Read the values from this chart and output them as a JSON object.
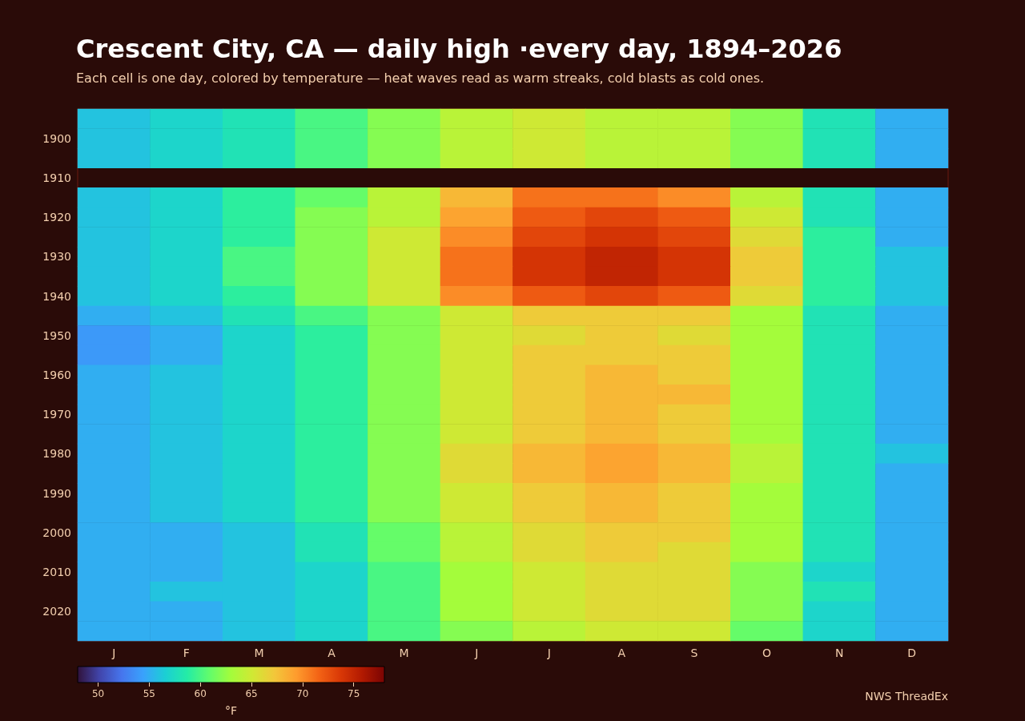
{
  "chart_data": {
    "type": "heatmap",
    "title": "Crescent City, CA — daily high ·every day, 1894–2026",
    "subtitle": "Each cell is one day, colored by temperature — heat waves read as warm streaks, cold blasts as cold ones.",
    "categories": [
      "J",
      "F",
      "M",
      "A",
      "M",
      "J",
      "J",
      "A",
      "S",
      "O",
      "N",
      "D"
    ],
    "y_categories": [
      null,
      "1900",
      null,
      "1910",
      null,
      "1920",
      null,
      "1930",
      null,
      "1940",
      null,
      "1950",
      null,
      "1960",
      null,
      "1970",
      null,
      "1980",
      null,
      "1990",
      null,
      "2000",
      null,
      "2010",
      null,
      "2020",
      null
    ],
    "cells": [
      [
        56,
        57,
        58,
        60,
        62,
        64,
        65,
        64,
        64,
        62,
        58,
        55
      ],
      [
        56,
        57,
        58,
        60,
        62,
        64,
        65,
        64,
        64,
        62,
        58,
        55
      ],
      [
        56,
        57,
        58,
        60,
        62,
        64,
        65,
        64,
        64,
        62,
        58,
        55
      ],
      [
        null,
        null,
        null,
        null,
        null,
        null,
        null,
        null,
        null,
        null,
        null,
        null
      ],
      [
        56,
        57,
        59,
        61,
        64,
        68,
        71,
        71,
        70,
        64,
        58,
        55
      ],
      [
        56,
        57,
        59,
        62,
        64,
        69,
        72,
        73,
        72,
        65,
        58,
        55
      ],
      [
        56,
        57,
        59,
        62,
        65,
        70,
        73,
        74,
        73,
        66,
        59,
        55
      ],
      [
        56,
        57,
        60,
        62,
        65,
        71,
        74,
        75,
        74,
        67,
        59,
        56
      ],
      [
        56,
        57,
        60,
        62,
        65,
        71,
        74,
        75,
        74,
        67,
        59,
        56
      ],
      [
        56,
        57,
        59,
        62,
        65,
        70,
        72,
        73,
        72,
        66,
        59,
        56
      ],
      [
        55,
        56,
        58,
        60,
        62,
        65,
        67,
        67,
        67,
        63,
        58,
        55
      ],
      [
        54,
        55,
        57,
        59,
        62,
        65,
        66,
        67,
        66,
        63,
        58,
        55
      ],
      [
        54,
        55,
        57,
        59,
        62,
        65,
        67,
        67,
        67,
        63,
        58,
        55
      ],
      [
        55,
        56,
        57,
        59,
        62,
        65,
        67,
        68,
        67,
        63,
        58,
        55
      ],
      [
        55,
        56,
        57,
        59,
        62,
        65,
        67,
        68,
        68,
        63,
        58,
        55
      ],
      [
        55,
        56,
        57,
        59,
        62,
        65,
        67,
        68,
        67,
        63,
        58,
        55
      ],
      [
        55,
        56,
        57,
        59,
        62,
        65,
        67,
        68,
        67,
        63,
        58,
        55
      ],
      [
        55,
        56,
        57,
        59,
        62,
        66,
        68,
        69,
        68,
        64,
        58,
        56
      ],
      [
        55,
        56,
        57,
        59,
        62,
        66,
        68,
        69,
        68,
        64,
        58,
        55
      ],
      [
        55,
        56,
        57,
        59,
        62,
        65,
        67,
        68,
        67,
        63,
        58,
        55
      ],
      [
        55,
        56,
        57,
        59,
        62,
        65,
        67,
        68,
        67,
        63,
        58,
        55
      ],
      [
        55,
        55,
        56,
        58,
        61,
        64,
        66,
        67,
        67,
        63,
        58,
        55
      ],
      [
        55,
        55,
        56,
        58,
        61,
        64,
        66,
        67,
        66,
        63,
        58,
        55
      ],
      [
        55,
        55,
        56,
        57,
        60,
        63,
        65,
        66,
        66,
        62,
        57,
        55
      ],
      [
        55,
        56,
        56,
        57,
        60,
        63,
        65,
        66,
        66,
        62,
        58,
        55
      ],
      [
        55,
        55,
        56,
        57,
        60,
        63,
        65,
        66,
        66,
        62,
        57,
        55
      ],
      [
        55,
        55,
        56,
        57,
        60,
        62,
        64,
        65,
        65,
        61,
        57,
        55
      ]
    ],
    "clim": [
      48,
      78
    ],
    "cticks": [
      50,
      55,
      60,
      65,
      70,
      75
    ],
    "clabel": "°F",
    "annotations": [
      "NWS ThreadEx"
    ]
  }
}
